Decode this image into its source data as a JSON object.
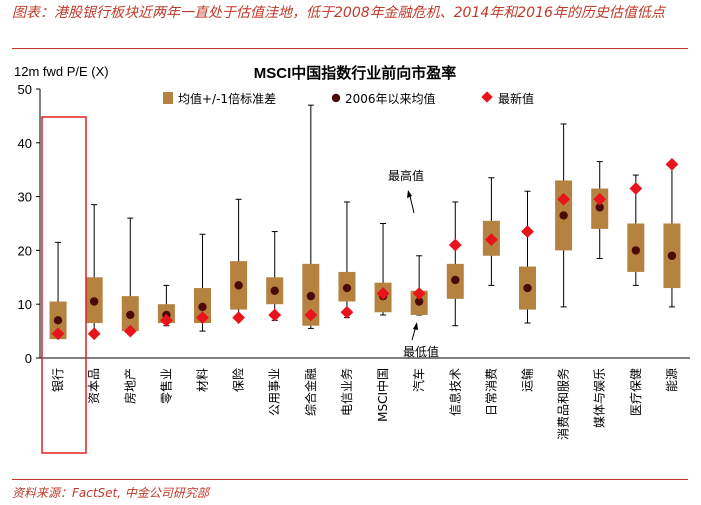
{
  "header": {
    "caption": "图表：港股银行板块近两年一直处于估值洼地，低于2008年金融危机、2014年和2016年的历史估值低点",
    "source": "资料来源：FactSet, 中金公司研究部"
  },
  "chart_data": {
    "type": "boxplot",
    "title": "MSCI中国指数行业前向市盈率",
    "ylabel": "12m fwd P/E (X)",
    "ylim": [
      0,
      50
    ],
    "yticks": [
      0,
      10,
      20,
      30,
      40,
      50
    ],
    "legend": {
      "box": "均值+/-1倍标准差",
      "mean": "2006年以来均值",
      "latest": "最新值"
    },
    "annotations": {
      "max_label": "最高值",
      "min_label": "最低值"
    },
    "highlight_category": "银行",
    "categories": [
      "银行",
      "资本品",
      "房地产",
      "零售业",
      "材料",
      "保险",
      "公用事业",
      "综合金融",
      "电信业务",
      "MSCI中国",
      "汽车",
      "信息技术",
      "日常消费",
      "运输",
      "消费品和服务",
      "媒体与娱乐",
      "医疗保健",
      "能源"
    ],
    "series": [
      {
        "name": "最低值",
        "values": [
          4.0,
          4.5,
          4.5,
          6.0,
          5.0,
          7.0,
          7.0,
          5.5,
          7.5,
          8.0,
          8.0,
          6.0,
          13.5,
          6.5,
          9.5,
          18.5,
          13.5,
          9.5
        ]
      },
      {
        "name": "最高值",
        "values": [
          21.5,
          28.5,
          26.0,
          13.5,
          23.0,
          29.5,
          23.5,
          47.0,
          29.0,
          25.0,
          19.0,
          29.0,
          33.5,
          31.0,
          43.5,
          36.5,
          34.0,
          36.0
        ]
      },
      {
        "name": "均值-1倍标准差",
        "values": [
          3.5,
          6.5,
          5.0,
          6.5,
          6.5,
          9.0,
          10.0,
          6.0,
          10.5,
          8.5,
          8.0,
          11.0,
          19.0,
          9.0,
          20.0,
          24.0,
          16.0,
          13.0
        ]
      },
      {
        "name": "均值+1倍标准差",
        "values": [
          10.5,
          15.0,
          11.5,
          10.0,
          13.0,
          18.0,
          15.0,
          17.5,
          16.0,
          14.0,
          12.5,
          17.5,
          25.5,
          17.0,
          33.0,
          31.5,
          25.0,
          25.0
        ]
      },
      {
        "name": "2006年以来均值",
        "values": [
          7.0,
          10.5,
          8.0,
          8.0,
          9.5,
          13.5,
          12.5,
          11.5,
          13.0,
          11.5,
          10.5,
          14.5,
          22.0,
          13.0,
          26.5,
          28.0,
          20.0,
          19.0
        ]
      },
      {
        "name": "最新值",
        "values": [
          4.5,
          4.5,
          5.0,
          7.0,
          7.5,
          7.5,
          8.0,
          8.0,
          8.5,
          12.0,
          12.0,
          21.0,
          22.0,
          23.5,
          29.5,
          29.5,
          31.5,
          36.0
        ]
      }
    ]
  }
}
